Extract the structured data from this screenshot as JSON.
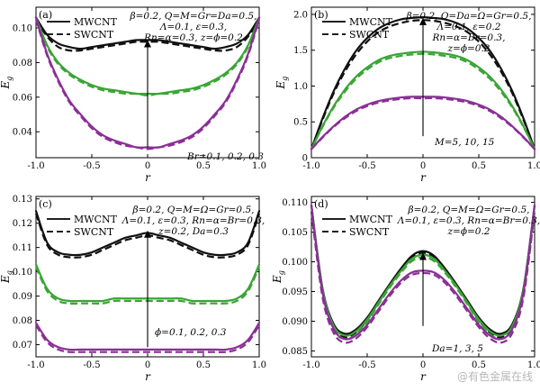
{
  "watermark": "@有色金属在线",
  "colors": {
    "black": "#111111",
    "green": "#3aa535",
    "purple": "#8a2f96"
  },
  "chart_data": [
    {
      "type": "line",
      "panel": "(a)",
      "xlabel": "r",
      "ylabel": "E",
      "ylabel_sub": "g",
      "xlim": [
        -1.0,
        1.0
      ],
      "ylim": [
        0.025,
        0.112
      ],
      "xticks": [
        "-1.0",
        "-0.5",
        "0",
        "0.5",
        "1.0"
      ],
      "yticks": [
        0.04,
        0.06,
        0.08,
        0.1
      ],
      "ytick_labels": [
        "0.04",
        "0.06",
        "0.08",
        "0.10"
      ],
      "legend": {
        "placement": "top-left",
        "entries": [
          "MWCNT",
          "SWCNT"
        ]
      },
      "params": [
        "β=0.2, Q=M=Gr=Da=0.5,",
        "Λ=0.1, ε=0.3,",
        "Rn=α=0.3, z=ϕ=0.2"
      ],
      "annotation": "Br=0.1, 0.2, 0.3",
      "arrow": {
        "x": 0,
        "from_y": 0.031,
        "to_y": 0.093
      },
      "x": [
        -1.0,
        -0.9,
        -0.8,
        -0.7,
        -0.6,
        -0.5,
        -0.4,
        -0.3,
        -0.2,
        -0.1,
        0.0,
        0.1,
        0.2,
        0.3,
        0.4,
        0.5,
        0.6,
        0.7,
        0.8,
        0.9,
        1.0
      ],
      "series": [
        {
          "color": "black",
          "style": "solid",
          "values": [
            0.106,
            0.096,
            0.091,
            0.089,
            0.088,
            0.089,
            0.09,
            0.091,
            0.092,
            0.093,
            0.093,
            0.093,
            0.092,
            0.091,
            0.09,
            0.089,
            0.088,
            0.089,
            0.091,
            0.096,
            0.106
          ]
        },
        {
          "color": "black",
          "style": "dashed",
          "values": [
            0.105,
            0.095,
            0.089,
            0.087,
            0.087,
            0.088,
            0.089,
            0.09,
            0.091,
            0.092,
            0.092,
            0.092,
            0.091,
            0.09,
            0.089,
            0.088,
            0.087,
            0.087,
            0.089,
            0.095,
            0.105
          ]
        },
        {
          "color": "green",
          "style": "solid",
          "values": [
            0.106,
            0.09,
            0.08,
            0.074,
            0.07,
            0.067,
            0.065,
            0.064,
            0.063,
            0.062,
            0.062,
            0.062,
            0.063,
            0.064,
            0.065,
            0.067,
            0.07,
            0.074,
            0.08,
            0.09,
            0.106
          ]
        },
        {
          "color": "green",
          "style": "dashed",
          "values": [
            0.105,
            0.089,
            0.079,
            0.073,
            0.069,
            0.066,
            0.064,
            0.063,
            0.062,
            0.062,
            0.061,
            0.062,
            0.062,
            0.063,
            0.064,
            0.066,
            0.069,
            0.073,
            0.079,
            0.089,
            0.105
          ]
        },
        {
          "color": "purple",
          "style": "solid",
          "values": [
            0.106,
            0.085,
            0.07,
            0.058,
            0.05,
            0.043,
            0.038,
            0.035,
            0.033,
            0.031,
            0.031,
            0.031,
            0.033,
            0.035,
            0.038,
            0.043,
            0.05,
            0.058,
            0.07,
            0.085,
            0.106
          ]
        },
        {
          "color": "purple",
          "style": "dashed",
          "values": [
            0.105,
            0.084,
            0.069,
            0.057,
            0.049,
            0.042,
            0.037,
            0.034,
            0.032,
            0.031,
            0.03,
            0.031,
            0.032,
            0.034,
            0.037,
            0.042,
            0.049,
            0.057,
            0.069,
            0.084,
            0.105
          ]
        }
      ]
    },
    {
      "type": "line",
      "panel": "(b)",
      "xlabel": "r",
      "ylabel": "E",
      "ylabel_sub": "g",
      "xlim": [
        -1.0,
        1.0
      ],
      "ylim": [
        0.0,
        2.1
      ],
      "xticks": [
        "-1.0",
        "-0.5",
        "0",
        "0.5",
        "1.0"
      ],
      "yticks": [
        0,
        0.5,
        1.0,
        1.5,
        2.0
      ],
      "ytick_labels": [
        "0",
        "0.5",
        "1.0",
        "1.5",
        "2.0"
      ],
      "legend": {
        "placement": "top-left",
        "entries": [
          "MWCNT",
          "SWCNT"
        ]
      },
      "params": [
        "β=0.2, Q=Da=Ω=Gr=0.5,",
        "Λ=0.1, ε=0.2",
        "Rn=α=Br=0.3,",
        "z=ϕ=0.2"
      ],
      "annotation": "M=5, 10, 15",
      "arrow": {
        "x": 0,
        "from_y": 0.3,
        "to_y": 1.95
      },
      "x": [
        -1.0,
        -0.9,
        -0.8,
        -0.7,
        -0.6,
        -0.5,
        -0.4,
        -0.3,
        -0.2,
        -0.1,
        0.0,
        0.1,
        0.2,
        0.3,
        0.4,
        0.5,
        0.6,
        0.7,
        0.8,
        0.9,
        1.0
      ],
      "series": [
        {
          "color": "black",
          "style": "solid",
          "values": [
            0.12,
            0.55,
            0.93,
            1.24,
            1.49,
            1.67,
            1.8,
            1.88,
            1.93,
            1.95,
            1.96,
            1.95,
            1.93,
            1.88,
            1.8,
            1.67,
            1.49,
            1.24,
            0.93,
            0.55,
            0.12
          ]
        },
        {
          "color": "black",
          "style": "dashed",
          "values": [
            0.12,
            0.53,
            0.9,
            1.2,
            1.44,
            1.62,
            1.75,
            1.83,
            1.88,
            1.91,
            1.92,
            1.91,
            1.88,
            1.83,
            1.75,
            1.62,
            1.44,
            1.2,
            0.9,
            0.53,
            0.12
          ]
        },
        {
          "color": "green",
          "style": "solid",
          "values": [
            0.12,
            0.44,
            0.72,
            0.95,
            1.13,
            1.26,
            1.36,
            1.42,
            1.45,
            1.47,
            1.48,
            1.47,
            1.45,
            1.42,
            1.36,
            1.26,
            1.13,
            0.95,
            0.72,
            0.44,
            0.12
          ]
        },
        {
          "color": "green",
          "style": "dashed",
          "values": [
            0.12,
            0.43,
            0.7,
            0.92,
            1.1,
            1.23,
            1.33,
            1.39,
            1.42,
            1.44,
            1.45,
            1.44,
            1.42,
            1.39,
            1.33,
            1.23,
            1.1,
            0.92,
            0.7,
            0.43,
            0.12
          ]
        },
        {
          "color": "purple",
          "style": "solid",
          "values": [
            0.12,
            0.29,
            0.44,
            0.57,
            0.67,
            0.74,
            0.79,
            0.82,
            0.84,
            0.85,
            0.85,
            0.85,
            0.84,
            0.82,
            0.79,
            0.74,
            0.67,
            0.57,
            0.44,
            0.29,
            0.12
          ]
        },
        {
          "color": "purple",
          "style": "dashed",
          "values": [
            0.12,
            0.28,
            0.43,
            0.55,
            0.65,
            0.72,
            0.77,
            0.8,
            0.82,
            0.83,
            0.83,
            0.83,
            0.82,
            0.8,
            0.77,
            0.72,
            0.65,
            0.55,
            0.43,
            0.28,
            0.12
          ]
        }
      ]
    },
    {
      "type": "line",
      "panel": "(c)",
      "xlabel": "r",
      "ylabel": "E",
      "ylabel_sub": "g",
      "xlim": [
        -1.0,
        1.0
      ],
      "ylim": [
        0.065,
        0.131
      ],
      "xticks": [
        "-1.0",
        "-0.5",
        "0",
        "0.5",
        "1.0"
      ],
      "yticks": [
        0.07,
        0.08,
        0.09,
        0.1,
        0.11,
        0.12,
        0.13
      ],
      "ytick_labels": [
        "0.07",
        "0.08",
        "0.09",
        "0.10",
        "0.11",
        "0.12",
        "0.13"
      ],
      "legend": {
        "placement": "top-left",
        "entries": [
          "MWCNT",
          "SWCNT"
        ]
      },
      "params": [
        "β=0.2, Q=M=Ω=Gr=0.5,",
        "Λ=0.1, ε=0.3, Rn=α=Br=0.3,",
        "z=0.2, Da=0.3"
      ],
      "annotation": "ϕ=0.1, 0.2, 0.3",
      "arrow": {
        "x": 0,
        "from_y": 0.069,
        "to_y": 0.117
      },
      "x": [
        -1.0,
        -0.9,
        -0.8,
        -0.7,
        -0.6,
        -0.5,
        -0.4,
        -0.3,
        -0.2,
        -0.1,
        0.0,
        0.1,
        0.2,
        0.3,
        0.4,
        0.5,
        0.6,
        0.7,
        0.8,
        0.9,
        1.0
      ],
      "series": [
        {
          "color": "black",
          "style": "solid",
          "values": [
            0.125,
            0.112,
            0.108,
            0.107,
            0.107,
            0.108,
            0.11,
            0.112,
            0.114,
            0.115,
            0.116,
            0.115,
            0.114,
            0.112,
            0.11,
            0.108,
            0.107,
            0.107,
            0.108,
            0.112,
            0.125
          ]
        },
        {
          "color": "black",
          "style": "dashed",
          "values": [
            0.124,
            0.111,
            0.107,
            0.106,
            0.106,
            0.107,
            0.109,
            0.111,
            0.113,
            0.114,
            0.115,
            0.114,
            0.113,
            0.111,
            0.109,
            0.107,
            0.106,
            0.106,
            0.107,
            0.111,
            0.124
          ]
        },
        {
          "color": "green",
          "style": "solid",
          "values": [
            0.103,
            0.093,
            0.089,
            0.088,
            0.088,
            0.088,
            0.088,
            0.089,
            0.089,
            0.089,
            0.089,
            0.089,
            0.089,
            0.089,
            0.088,
            0.088,
            0.088,
            0.088,
            0.089,
            0.093,
            0.103
          ]
        },
        {
          "color": "green",
          "style": "dashed",
          "values": [
            0.102,
            0.092,
            0.088,
            0.087,
            0.087,
            0.087,
            0.087,
            0.088,
            0.088,
            0.088,
            0.088,
            0.088,
            0.088,
            0.088,
            0.087,
            0.087,
            0.087,
            0.087,
            0.088,
            0.092,
            0.102
          ]
        },
        {
          "color": "purple",
          "style": "solid",
          "values": [
            0.079,
            0.072,
            0.069,
            0.068,
            0.068,
            0.068,
            0.068,
            0.068,
            0.068,
            0.068,
            0.068,
            0.068,
            0.068,
            0.068,
            0.068,
            0.068,
            0.068,
            0.068,
            0.069,
            0.072,
            0.079
          ]
        },
        {
          "color": "purple",
          "style": "dashed",
          "values": [
            0.078,
            0.071,
            0.068,
            0.067,
            0.067,
            0.067,
            0.067,
            0.067,
            0.067,
            0.067,
            0.067,
            0.067,
            0.067,
            0.067,
            0.067,
            0.067,
            0.067,
            0.067,
            0.068,
            0.071,
            0.078
          ]
        }
      ]
    },
    {
      "type": "line",
      "panel": "(d)",
      "xlabel": "r",
      "ylabel": "E",
      "ylabel_sub": "g",
      "xlim": [
        -1.0,
        1.0
      ],
      "ylim": [
        0.084,
        0.111
      ],
      "xticks": [
        "-1.0",
        "-0.5",
        "0",
        "0.5",
        "1.0"
      ],
      "yticks": [
        0.085,
        0.09,
        0.095,
        0.1,
        0.105,
        0.11
      ],
      "ytick_labels": [
        "0.085",
        "0.090",
        "0.095",
        "0.100",
        "0.105",
        "0.110"
      ],
      "legend": {
        "placement": "top-left",
        "entries": [
          "MWCNT",
          "SWCNT"
        ]
      },
      "params": [
        "β=0.2, Q=M=Ω=Gr=0.5,",
        "Λ=0.1, ε=0.3, Rn=α=Br=0.3,",
        "z=ϕ=0.2"
      ],
      "annotation": "Da=1, 3, 5",
      "arrow": {
        "x": 0,
        "from_y": 0.0892,
        "to_y": 0.1015
      },
      "x": [
        -1.0,
        -0.9,
        -0.8,
        -0.7,
        -0.6,
        -0.5,
        -0.4,
        -0.3,
        -0.2,
        -0.1,
        0.0,
        0.1,
        0.2,
        0.3,
        0.4,
        0.5,
        0.6,
        0.7,
        0.8,
        0.9,
        1.0
      ],
      "series": [
        {
          "color": "black",
          "style": "solid",
          "values": [
            0.1095,
            0.0955,
            0.0895,
            0.0879,
            0.0886,
            0.0906,
            0.0934,
            0.0962,
            0.0988,
            0.101,
            0.1018,
            0.101,
            0.0988,
            0.0962,
            0.0934,
            0.0906,
            0.0886,
            0.0879,
            0.0895,
            0.0955,
            0.1095
          ]
        },
        {
          "color": "black",
          "style": "dashed",
          "values": [
            0.1085,
            0.0947,
            0.0888,
            0.0873,
            0.0881,
            0.0902,
            0.0931,
            0.096,
            0.0986,
            0.1007,
            0.1015,
            0.1007,
            0.0986,
            0.096,
            0.0931,
            0.0902,
            0.0881,
            0.0873,
            0.0888,
            0.0947,
            0.1085
          ]
        },
        {
          "color": "green",
          "style": "solid",
          "values": [
            0.1095,
            0.0953,
            0.0892,
            0.0876,
            0.0883,
            0.0903,
            0.0931,
            0.0959,
            0.0984,
            0.1005,
            0.1012,
            0.1005,
            0.0984,
            0.0959,
            0.0931,
            0.0903,
            0.0883,
            0.0876,
            0.0892,
            0.0953,
            0.1095
          ]
        },
        {
          "color": "green",
          "style": "dashed",
          "values": [
            0.1085,
            0.0945,
            0.0885,
            0.087,
            0.0878,
            0.0899,
            0.0928,
            0.0956,
            0.0981,
            0.1001,
            0.1008,
            0.1001,
            0.0981,
            0.0956,
            0.0928,
            0.0899,
            0.0878,
            0.087,
            0.0885,
            0.0945,
            0.1085
          ]
        },
        {
          "color": "purple",
          "style": "solid",
          "values": [
            0.1095,
            0.0948,
            0.0887,
            0.087,
            0.0876,
            0.0894,
            0.092,
            0.0946,
            0.0968,
            0.0982,
            0.0985,
            0.0982,
            0.0968,
            0.0946,
            0.092,
            0.0894,
            0.0876,
            0.087,
            0.0887,
            0.0948,
            0.1095
          ]
        },
        {
          "color": "purple",
          "style": "dashed",
          "values": [
            0.1085,
            0.094,
            0.088,
            0.0864,
            0.0871,
            0.089,
            0.0916,
            0.0942,
            0.0964,
            0.0978,
            0.0981,
            0.0978,
            0.0964,
            0.0942,
            0.0916,
            0.089,
            0.0871,
            0.0864,
            0.088,
            0.094,
            0.1085
          ]
        }
      ]
    }
  ]
}
